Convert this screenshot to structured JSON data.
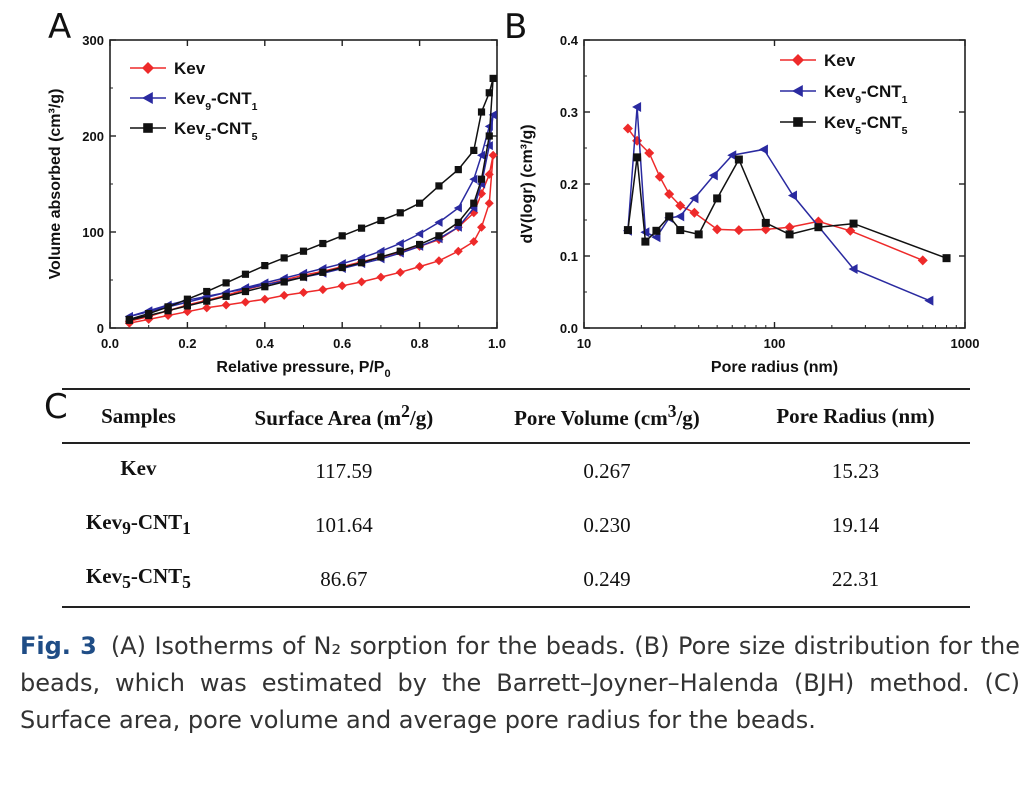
{
  "panels": {
    "a_label": "A",
    "b_label": "B",
    "c_label": "C"
  },
  "chart_data": [
    {
      "type": "line",
      "panel": "A",
      "xlabel": "Relative pressure, P/P",
      "xlabel_sub": "0",
      "ylabel": "Volume absorbed (cm³/g)",
      "xlim": [
        0,
        1.0
      ],
      "ylim": [
        0,
        300
      ],
      "xticks": [
        0.0,
        0.2,
        0.4,
        0.6,
        0.8,
        1.0
      ],
      "xtick_labels": [
        "0.0",
        "0.2",
        "0.4",
        "0.6",
        "0.8",
        "1.0"
      ],
      "yticks": [
        0,
        100,
        200,
        300
      ],
      "ytick_labels": [
        "0",
        "100",
        "200",
        "300"
      ],
      "legend_position": "top-left",
      "series": [
        {
          "name": "Kev",
          "sub1": "",
          "sub2": "",
          "color": "#ee2a2a",
          "marker": "diamond",
          "x": [
            0.05,
            0.1,
            0.15,
            0.2,
            0.25,
            0.3,
            0.35,
            0.4,
            0.45,
            0.5,
            0.55,
            0.6,
            0.65,
            0.7,
            0.75,
            0.8,
            0.85,
            0.9,
            0.94,
            0.96,
            0.98,
            0.99,
            0.98,
            0.96,
            0.94,
            0.9,
            0.85,
            0.8,
            0.75,
            0.7,
            0.65,
            0.6,
            0.55,
            0.5,
            0.45,
            0.4,
            0.35,
            0.3,
            0.25,
            0.2,
            0.15,
            0.1,
            0.05
          ],
          "y": [
            5,
            9,
            13,
            17,
            21,
            24,
            27,
            30,
            34,
            37,
            40,
            44,
            48,
            53,
            58,
            64,
            70,
            80,
            90,
            105,
            130,
            180,
            160,
            140,
            120,
            105,
            92,
            85,
            79,
            74,
            69,
            64,
            59,
            55,
            50,
            45,
            40,
            34,
            29,
            24,
            18,
            12,
            7
          ]
        },
        {
          "name": "Kev",
          "sub1": "9",
          "sub2": "1",
          "color": "#2a2aa0",
          "marker": "triangle-left",
          "x": [
            0.05,
            0.1,
            0.15,
            0.2,
            0.25,
            0.3,
            0.35,
            0.4,
            0.45,
            0.5,
            0.55,
            0.6,
            0.65,
            0.7,
            0.75,
            0.8,
            0.85,
            0.9,
            0.94,
            0.96,
            0.98,
            0.99,
            0.98,
            0.96,
            0.94,
            0.9,
            0.85,
            0.8,
            0.75,
            0.7,
            0.65,
            0.6,
            0.55,
            0.5,
            0.45,
            0.4,
            0.35,
            0.3,
            0.25,
            0.2,
            0.15,
            0.1,
            0.05
          ],
          "y": [
            12,
            18,
            24,
            29,
            33,
            37,
            41,
            45,
            49,
            53,
            57,
            62,
            67,
            72,
            78,
            85,
            93,
            105,
            125,
            150,
            190,
            222,
            210,
            180,
            155,
            125,
            110,
            98,
            88,
            80,
            73,
            67,
            62,
            57,
            52,
            47,
            42,
            37,
            32,
            27,
            22,
            17,
            12
          ]
        },
        {
          "name": "Kev",
          "sub1": "5",
          "sub2": "5",
          "color": "#111111",
          "marker": "square",
          "x": [
            0.05,
            0.1,
            0.15,
            0.2,
            0.25,
            0.3,
            0.35,
            0.4,
            0.45,
            0.5,
            0.55,
            0.6,
            0.65,
            0.7,
            0.75,
            0.8,
            0.85,
            0.9,
            0.94,
            0.96,
            0.98,
            0.99,
            0.98,
            0.96,
            0.94,
            0.9,
            0.85,
            0.8,
            0.75,
            0.7,
            0.65,
            0.6,
            0.55,
            0.5,
            0.45,
            0.4,
            0.35,
            0.3,
            0.25,
            0.2,
            0.15,
            0.1,
            0.05
          ],
          "y": [
            8,
            13,
            18,
            23,
            28,
            33,
            38,
            43,
            48,
            53,
            58,
            63,
            68,
            74,
            80,
            87,
            96,
            110,
            130,
            155,
            200,
            260,
            245,
            225,
            185,
            165,
            148,
            130,
            120,
            112,
            104,
            96,
            88,
            80,
            73,
            65,
            56,
            47,
            38,
            30,
            22,
            15,
            9
          ]
        }
      ]
    },
    {
      "type": "line",
      "panel": "B",
      "xlabel": "Pore radius (nm)",
      "ylabel": "dV(logr) (cm³/g)",
      "xscale": "log",
      "xlim": [
        10,
        1000
      ],
      "ylim": [
        0.0,
        0.4
      ],
      "xticks": [
        10,
        100,
        1000
      ],
      "xtick_labels": [
        "10",
        "100",
        "1000"
      ],
      "yticks": [
        0.0,
        0.1,
        0.2,
        0.3,
        0.4
      ],
      "ytick_labels": [
        "0.0",
        "0.1",
        "0.2",
        "0.3",
        "0.4"
      ],
      "legend_position": "top-right",
      "series": [
        {
          "name": "Kev",
          "sub1": "",
          "sub2": "",
          "color": "#ee2a2a",
          "marker": "diamond",
          "x": [
            17,
            19,
            22,
            25,
            28,
            32,
            38,
            50,
            65,
            90,
            120,
            170,
            250,
            600
          ],
          "y": [
            0.277,
            0.26,
            0.243,
            0.21,
            0.186,
            0.17,
            0.16,
            0.137,
            0.136,
            0.137,
            0.14,
            0.148,
            0.135,
            0.094
          ]
        },
        {
          "name": "Kev",
          "sub1": "9",
          "sub2": "1",
          "color": "#2a2aa0",
          "marker": "triangle-left",
          "x": [
            17,
            19,
            21,
            24,
            28,
            32,
            38,
            48,
            60,
            88,
            125,
            260,
            650
          ],
          "y": [
            0.135,
            0.307,
            0.133,
            0.126,
            0.153,
            0.155,
            0.18,
            0.212,
            0.24,
            0.248,
            0.184,
            0.082,
            0.038
          ]
        },
        {
          "name": "Kev",
          "sub1": "5",
          "sub2": "5",
          "color": "#111111",
          "marker": "square",
          "x": [
            17,
            19,
            21,
            24,
            28,
            32,
            40,
            50,
            65,
            90,
            120,
            170,
            260,
            800
          ],
          "y": [
            0.136,
            0.237,
            0.12,
            0.135,
            0.155,
            0.136,
            0.13,
            0.18,
            0.234,
            0.146,
            0.13,
            0.14,
            0.145,
            0.097
          ]
        }
      ]
    }
  ],
  "table": {
    "headers": [
      {
        "text": "Samples",
        "sup": "",
        "tail": ""
      },
      {
        "text": "Surface Area (m",
        "sup": "2",
        "tail": "/g)"
      },
      {
        "text": "Pore Volume (cm",
        "sup": "3",
        "tail": "/g)"
      },
      {
        "text": "Pore Radius (nm)",
        "sup": "",
        "tail": ""
      }
    ],
    "rows": [
      {
        "sample": "Kev",
        "sub1": "",
        "mid": "",
        "sub2": "",
        "surface_area": "117.59",
        "pore_volume": "0.267",
        "pore_radius": "15.23"
      },
      {
        "sample": "Kev",
        "sub1": "9",
        "mid": "-CNT",
        "sub2": "1",
        "surface_area": "101.64",
        "pore_volume": "0.230",
        "pore_radius": "19.14"
      },
      {
        "sample": "Kev",
        "sub1": "5",
        "mid": "-CNT",
        "sub2": "5",
        "surface_area": "86.67",
        "pore_volume": "0.249",
        "pore_radius": "22.31"
      }
    ]
  },
  "caption": {
    "label": "Fig. 3",
    "text": "(A) Isotherms of N₂ sorption for the beads. (B) Pore size distribution for the beads, which was estimated by the Barrett–Joyner–Halenda (BJH) method. (C) Surface area, pore volume and average pore radius for the beads."
  }
}
